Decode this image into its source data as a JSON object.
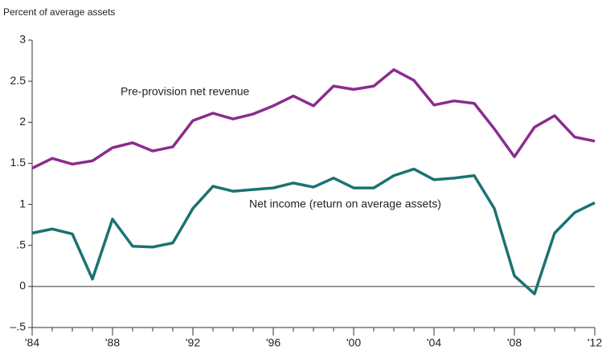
{
  "chart_data": {
    "type": "line",
    "ylabel": "Percent of average assets",
    "x": [
      1984,
      1985,
      1986,
      1987,
      1988,
      1989,
      1990,
      1991,
      1992,
      1993,
      1994,
      1995,
      1996,
      1997,
      1998,
      1999,
      2000,
      2001,
      2002,
      2003,
      2004,
      2005,
      2006,
      2007,
      2008,
      2009,
      2010,
      2011,
      2012
    ],
    "series": [
      {
        "name": "Pre-provision net revenue",
        "color": "#8b2c8f",
        "values": [
          1.44,
          1.56,
          1.49,
          1.53,
          1.69,
          1.75,
          1.65,
          1.7,
          2.02,
          2.11,
          2.04,
          2.1,
          2.2,
          2.32,
          2.2,
          2.44,
          2.4,
          2.44,
          2.64,
          2.51,
          2.21,
          2.26,
          2.23,
          1.92,
          1.58,
          1.94,
          2.08,
          1.82,
          1.77
        ]
      },
      {
        "name": "Net income (return on average assets)",
        "color": "#1a7372",
        "values": [
          0.65,
          0.7,
          0.64,
          0.09,
          0.82,
          0.49,
          0.48,
          0.53,
          0.95,
          1.22,
          1.16,
          1.18,
          1.2,
          1.26,
          1.21,
          1.32,
          1.2,
          1.2,
          1.35,
          1.43,
          1.3,
          1.32,
          1.35,
          0.95,
          0.13,
          -0.09,
          0.65,
          0.9,
          1.02
        ]
      }
    ],
    "xlim": [
      1984,
      2012
    ],
    "xticks": [
      {
        "value": 1984,
        "label": "'84"
      },
      {
        "value": 1988,
        "label": "'88"
      },
      {
        "value": 1992,
        "label": "'92"
      },
      {
        "value": 1996,
        "label": "'96"
      },
      {
        "value": 2000,
        "label": "'00"
      },
      {
        "value": 2004,
        "label": "'04"
      },
      {
        "value": 2008,
        "label": "'08"
      },
      {
        "value": 2012,
        "label": "'12"
      }
    ],
    "xminorticks": [
      1984,
      1985,
      1986,
      1987,
      1988,
      1989,
      1990,
      1991,
      1992,
      1993,
      1994,
      1995,
      1996,
      1997,
      1998,
      1999,
      2000,
      2001,
      2002,
      2003,
      2004,
      2005,
      2006,
      2007,
      2008,
      2009,
      2010,
      2011,
      2012
    ],
    "ylim": [
      -0.5,
      3
    ],
    "yticks": [
      {
        "value": -0.5,
        "label": "–.5"
      },
      0,
      {
        "value": 0.5,
        "label": ".5"
      },
      1,
      1.5,
      2,
      2.5,
      3
    ]
  }
}
